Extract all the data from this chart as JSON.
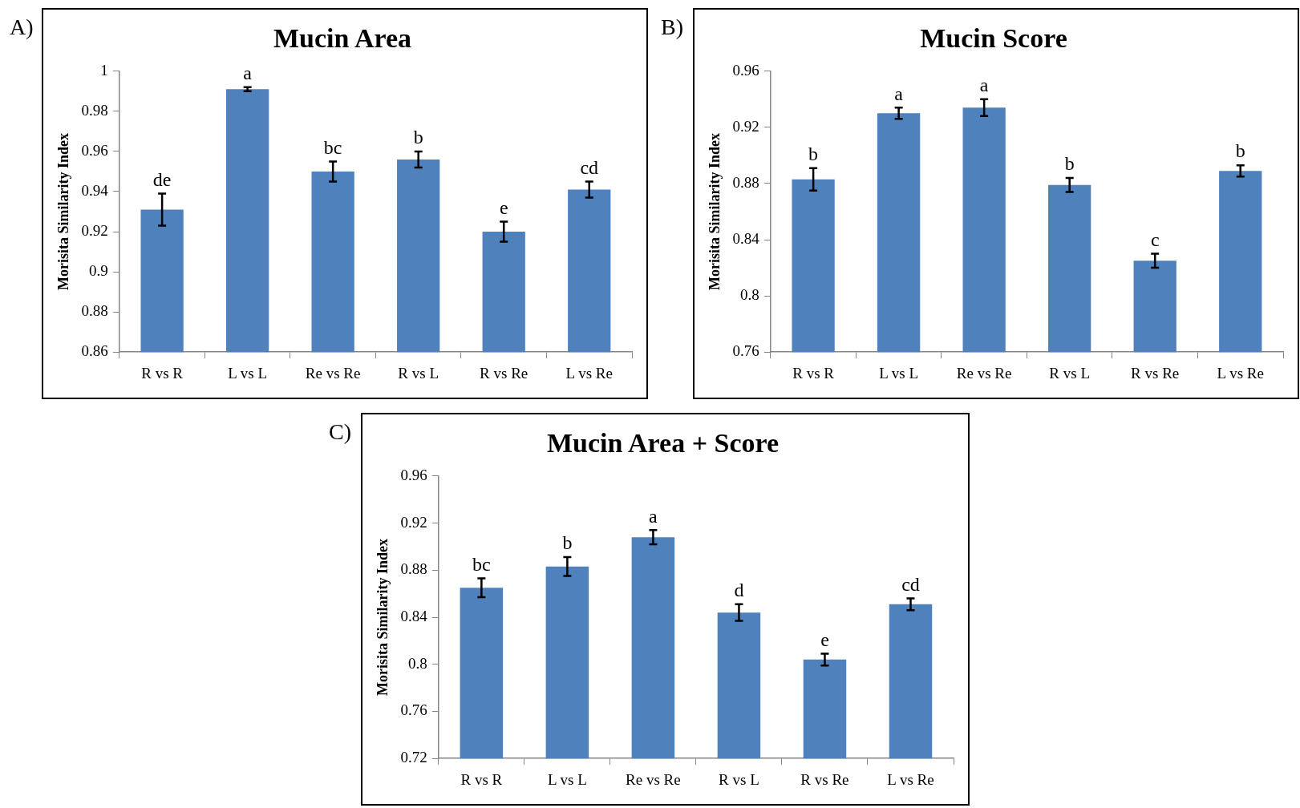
{
  "chart_data": [
    {
      "type": "bar",
      "title": "Mucin Area",
      "ylabel": "Morisita Similarity Index",
      "categories": [
        "R vs R",
        "L vs L",
        "Re vs Re",
        "R vs L",
        "R vs Re",
        "L vs Re"
      ],
      "values": [
        0.931,
        0.991,
        0.95,
        0.956,
        0.92,
        0.941
      ],
      "errors": [
        0.008,
        0.001,
        0.005,
        0.004,
        0.005,
        0.004
      ],
      "color": "#4f81bd",
      "ylim": [
        0.86,
        1
      ],
      "yticks": [
        0.86,
        0.88,
        0.9,
        0.92,
        0.94,
        0.96,
        0.98,
        1
      ],
      "annotations": [
        "A)",
        {
          "text": "de",
          "x": "R vs R",
          "y": 0.939
        },
        {
          "text": "a",
          "x": "L vs L",
          "y": 0.992
        },
        {
          "text": "bc",
          "x": "Re vs Re",
          "y": 0.955
        },
        {
          "text": "b",
          "x": "R vs L",
          "y": 0.96
        },
        {
          "text": "e",
          "x": "R vs Re",
          "y": 0.925
        },
        {
          "text": "cd",
          "x": "L vs Re",
          "y": 0.945
        }
      ]
    },
    {
      "type": "bar",
      "title": "Mucin Score",
      "ylabel": "Morisita Similarity Index",
      "categories": [
        "R vs R",
        "L vs L",
        "Re vs Re",
        "R vs L",
        "R vs Re",
        "L vs Re"
      ],
      "values": [
        0.883,
        0.93,
        0.934,
        0.879,
        0.825,
        0.889
      ],
      "errors": [
        0.008,
        0.004,
        0.006,
        0.005,
        0.005,
        0.004
      ],
      "color": "#4f81bd",
      "ylim": [
        0.76,
        0.96
      ],
      "yticks": [
        0.76,
        0.8,
        0.84,
        0.88,
        0.92,
        0.96
      ],
      "annotations": [
        "B)",
        {
          "text": "b",
          "x": "R vs R",
          "y": 0.891
        },
        {
          "text": "a",
          "x": "L vs L",
          "y": 0.934
        },
        {
          "text": "a",
          "x": "Re vs Re",
          "y": 0.94
        },
        {
          "text": "b",
          "x": "R vs L",
          "y": 0.884
        },
        {
          "text": "c",
          "x": "R vs Re",
          "y": 0.83
        },
        {
          "text": "b",
          "x": "L vs Re",
          "y": 0.893
        }
      ]
    },
    {
      "type": "bar",
      "title": "Mucin Area + Score",
      "ylabel": "Morisita Similarity Index",
      "categories": [
        "R vs R",
        "L vs L",
        "Re vs Re",
        "R vs L",
        "R vs Re",
        "L vs Re"
      ],
      "values": [
        0.865,
        0.883,
        0.908,
        0.844,
        0.804,
        0.851
      ],
      "errors": [
        0.008,
        0.008,
        0.006,
        0.007,
        0.005,
        0.005
      ],
      "color": "#4f81bd",
      "ylim": [
        0.72,
        0.96
      ],
      "yticks": [
        0.72,
        0.76,
        0.8,
        0.84,
        0.88,
        0.92,
        0.96
      ],
      "annotations": [
        "C)",
        {
          "text": "bc",
          "x": "R vs R",
          "y": 0.873
        },
        {
          "text": "b",
          "x": "L vs L",
          "y": 0.891
        },
        {
          "text": "a",
          "x": "Re vs Re",
          "y": 0.914
        },
        {
          "text": "d",
          "x": "R vs L",
          "y": 0.851
        },
        {
          "text": "e",
          "x": "R vs Re",
          "y": 0.809
        },
        {
          "text": "cd",
          "x": "L vs Re",
          "y": 0.856
        }
      ]
    }
  ]
}
